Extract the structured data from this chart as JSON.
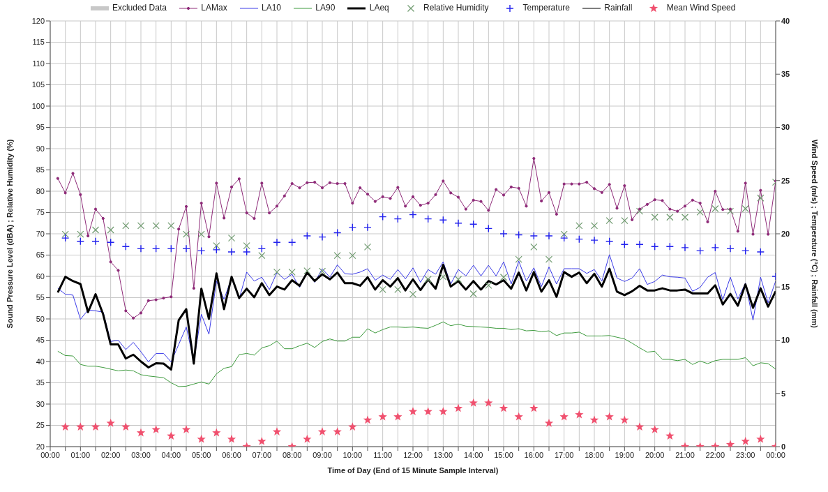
{
  "chart_data": {
    "type": "line",
    "xlabel": "Time of Day (End of 15 Minute Sample Interval)",
    "ylabel": "Sound Pressure Level (dBA) ; Relative Humidity (%)",
    "y2label": "Wind Speed (m/s) ; Temperature (°C) ; Rainfall (mm)",
    "x": [
      0.25,
      0.5,
      0.75,
      1,
      1.25,
      1.5,
      1.75,
      2,
      2.25,
      2.5,
      2.75,
      3,
      3.25,
      3.5,
      3.75,
      4,
      4.25,
      4.5,
      4.75,
      5,
      5.25,
      5.5,
      5.75,
      6,
      6.25,
      6.5,
      6.75,
      7,
      7.25,
      7.5,
      7.75,
      8,
      8.25,
      8.5,
      8.75,
      9,
      9.25,
      9.5,
      9.75,
      10,
      10.25,
      10.5,
      10.75,
      11,
      11.25,
      11.5,
      11.75,
      12,
      12.25,
      12.5,
      12.75,
      13,
      13.25,
      13.5,
      13.75,
      14,
      14.25,
      14.5,
      14.75,
      15,
      15.25,
      15.5,
      15.75,
      16,
      16.25,
      16.5,
      16.75,
      17,
      17.25,
      17.5,
      17.75,
      18,
      18.25,
      18.5,
      18.75,
      19,
      19.25,
      19.5,
      19.75,
      20,
      20.25,
      20.5,
      20.75,
      21,
      21.25,
      21.5,
      21.75,
      22,
      22.25,
      22.5,
      22.75,
      23,
      23.25,
      23.5,
      23.75,
      24
    ],
    "series": [
      {
        "name": "Excluded Data",
        "type": "area",
        "color": "#c8c8c8",
        "values": [
          null,
          null,
          null,
          null,
          null,
          null,
          null,
          null,
          null,
          null,
          null,
          null,
          null,
          null,
          null,
          null,
          null,
          null,
          null,
          null,
          null,
          null,
          null,
          null,
          null,
          null,
          null,
          null,
          null,
          null,
          null,
          null,
          null,
          null,
          null,
          null,
          null,
          null,
          null,
          null,
          null,
          null,
          null,
          null,
          null,
          null,
          null,
          null,
          null,
          null,
          null,
          null,
          null,
          null,
          null,
          null,
          null,
          null,
          null,
          null,
          null,
          null,
          null,
          null,
          null,
          null,
          null,
          null,
          null,
          null,
          null,
          null,
          null,
          null,
          null,
          null,
          null,
          null,
          null,
          null,
          null,
          null,
          null,
          null,
          null,
          null,
          null,
          null,
          null,
          null,
          null,
          null,
          null,
          null,
          null,
          null
        ]
      },
      {
        "name": "LAMax",
        "color": "#8e2a78",
        "marker": "circle",
        "values": [
          83.0,
          79.6,
          84.2,
          79.2,
          69.5,
          75.8,
          73.6,
          63.4,
          61.4,
          51.9,
          50.2,
          51.4,
          54.3,
          54.5,
          54.9,
          55.2,
          71.1,
          76.4,
          57.2,
          77.2,
          69.3,
          81.9,
          73.7,
          81.0,
          82.9,
          74.9,
          73.6,
          81.9,
          74.9,
          76.5,
          78.9,
          81.8,
          80.8,
          82.0,
          82.1,
          80.8,
          82.0,
          81.8,
          81.8,
          77.2,
          80.8,
          79.3,
          77.6,
          78.7,
          78.3,
          80.9,
          76.5,
          78.7,
          76.7,
          77.2,
          79.2,
          82.4,
          79.6,
          78.6,
          75.8,
          77.9,
          77.6,
          75.5,
          80.4,
          79.1,
          81.0,
          80.7,
          76.5,
          87.7,
          77.7,
          79.7,
          74.6,
          81.7,
          81.7,
          81.7,
          82.1,
          80.6,
          79.7,
          81.6,
          76.0,
          81.3,
          73.3,
          75.8,
          76.9,
          78.0,
          77.8,
          75.8,
          75.3,
          76.5,
          77.9,
          77.2,
          72.8,
          80.0,
          75.7,
          75.8,
          70.6,
          81.9,
          69.9,
          80.2,
          69.9,
          82.4
        ]
      },
      {
        "name": "LA10",
        "color": "#3a3ae8",
        "values": [
          57.2,
          55.8,
          55.6,
          49.9,
          52.1,
          51.9,
          51.6,
          44.7,
          45.0,
          42.8,
          44.5,
          42.3,
          39.9,
          41.9,
          41.9,
          39.9,
          44.0,
          48.1,
          40.1,
          51.1,
          46.4,
          58.9,
          54.6,
          59.6,
          54.7,
          61.0,
          58.9,
          59.8,
          56.9,
          60.9,
          59.3,
          60.5,
          57.4,
          61.0,
          58.6,
          61.8,
          59.8,
          62.7,
          60.6,
          60.5,
          61.0,
          61.8,
          59.1,
          60.3,
          59.3,
          61.6,
          59.4,
          62.0,
          58.6,
          61.6,
          60.5,
          63.4,
          58.2,
          61.6,
          60.1,
          62.6,
          60.1,
          62.6,
          60.1,
          63.4,
          58.2,
          63.6,
          58.9,
          62.0,
          57.6,
          62.2,
          58.2,
          61.8,
          61.8,
          61.8,
          60.7,
          61.6,
          58.9,
          65.1,
          59.6,
          58.8,
          59.6,
          61.8,
          58.1,
          58.8,
          60.3,
          59.9,
          59.8,
          59.6,
          56.5,
          57.4,
          59.8,
          60.9,
          54.5,
          59.8,
          54.7,
          58.4,
          49.7,
          59.8,
          53.8,
          58.9
        ]
      },
      {
        "name": "LA90",
        "color": "#3c9a3c",
        "values": [
          42.4,
          41.4,
          41.3,
          39.3,
          38.9,
          38.9,
          38.6,
          38.2,
          37.8,
          38.0,
          37.8,
          36.9,
          36.6,
          36.4,
          36.2,
          35.0,
          34.1,
          34.2,
          34.7,
          35.2,
          34.7,
          37.1,
          38.4,
          38.8,
          41.6,
          41.9,
          41.5,
          43.2,
          43.7,
          44.8,
          43.0,
          43.0,
          43.7,
          44.3,
          43.3,
          44.7,
          45.3,
          44.8,
          44.8,
          45.7,
          45.7,
          47.7,
          46.7,
          47.5,
          48.1,
          48.1,
          48.0,
          48.1,
          47.9,
          47.8,
          48.5,
          49.3,
          48.4,
          48.8,
          48.3,
          48.2,
          48.1,
          48.0,
          47.8,
          47.8,
          47.5,
          47.7,
          47.2,
          47.3,
          47.0,
          47.2,
          46.1,
          46.7,
          46.7,
          46.9,
          46.0,
          46.0,
          46.0,
          46.1,
          45.7,
          45.3,
          44.3,
          43.2,
          42.2,
          42.4,
          40.5,
          40.5,
          40.2,
          40.5,
          39.3,
          40.1,
          39.5,
          40.2,
          40.5,
          40.5,
          40.5,
          40.9,
          39.0,
          39.7,
          39.5,
          38.2
        ]
      },
      {
        "name": "LAeq",
        "color": "#000000",
        "values": [
          56.2,
          59.9,
          58.9,
          58.2,
          51.6,
          55.8,
          51.1,
          44.0,
          44.0,
          40.7,
          41.6,
          40.0,
          38.6,
          39.6,
          39.5,
          38.1,
          49.7,
          52.3,
          39.5,
          57.1,
          50.0,
          60.7,
          52.3,
          59.9,
          54.9,
          57.1,
          55.1,
          58.4,
          55.6,
          57.6,
          56.9,
          59.1,
          57.8,
          60.9,
          58.9,
          60.5,
          59.3,
          60.9,
          58.4,
          58.4,
          57.8,
          59.8,
          56.9,
          59.1,
          57.6,
          59.6,
          56.7,
          59.3,
          56.8,
          59.3,
          57.1,
          62.7,
          57.6,
          58.9,
          56.9,
          58.9,
          56.9,
          58.9,
          58.1,
          59.1,
          57.1,
          60.9,
          56.7,
          61.0,
          56.4,
          59.1,
          55.2,
          61.0,
          59.9,
          60.9,
          58.4,
          60.6,
          57.6,
          61.8,
          56.4,
          55.6,
          56.5,
          57.8,
          56.7,
          56.7,
          57.2,
          56.7,
          56.7,
          56.9,
          56.0,
          56.0,
          56.0,
          57.9,
          53.4,
          55.9,
          53.1,
          58.1,
          52.6,
          57.2,
          52.9,
          56.5
        ]
      },
      {
        "name": "Relative Humidity",
        "type": "scatter",
        "color": "#6f9a6f",
        "marker": "cross",
        "x": [
          0.5,
          1,
          1.5,
          2,
          2.5,
          3,
          3.5,
          4,
          4.5,
          5,
          5.5,
          6,
          6.5,
          7,
          7.5,
          8,
          8.5,
          9,
          9.5,
          10,
          10.5,
          11,
          11.5,
          12,
          12.5,
          13,
          13.5,
          14,
          14.5,
          15,
          15.5,
          16,
          16.5,
          17,
          17.5,
          18,
          18.5,
          19,
          19.5,
          20,
          20.5,
          21,
          21.5,
          22,
          22.5,
          23,
          23.5,
          24
        ],
        "values": [
          69.9,
          69.9,
          70.9,
          70.9,
          71.9,
          71.9,
          71.9,
          71.9,
          69.9,
          69.9,
          67.2,
          69.0,
          67.2,
          64.9,
          61.0,
          61.0,
          61.3,
          61.2,
          64.9,
          64.9,
          66.9,
          56.9,
          56.9,
          55.8,
          59.3,
          59.9,
          59.3,
          55.9,
          57.9,
          59.8,
          64.0,
          66.9,
          64.0,
          69.9,
          71.9,
          71.9,
          73.1,
          73.1,
          75.3,
          73.9,
          73.9,
          73.9,
          75.1,
          75.9,
          75.3,
          75.9,
          78.4,
          82.1
        ]
      },
      {
        "name": "Temperature",
        "type": "scatter",
        "color": "#2222ee",
        "marker": "plus",
        "axis": "y2",
        "x": [
          0.5,
          1,
          1.5,
          2,
          2.5,
          3,
          3.5,
          4,
          4.5,
          5,
          5.5,
          6,
          6.5,
          7,
          7.5,
          8,
          8.5,
          9,
          9.5,
          10,
          10.5,
          11,
          11.5,
          12,
          12.5,
          13,
          13.5,
          14,
          14.5,
          15,
          15.5,
          16,
          16.5,
          17,
          17.5,
          18,
          18.5,
          19,
          19.5,
          20,
          20.5,
          21,
          21.5,
          22,
          22.5,
          23,
          23.5,
          24
        ],
        "values": [
          19.6,
          19.3,
          19.3,
          19.2,
          18.8,
          18.6,
          18.6,
          18.6,
          18.6,
          18.4,
          18.5,
          18.3,
          18.3,
          18.6,
          19.2,
          19.2,
          19.8,
          19.7,
          20.1,
          20.6,
          20.6,
          21.6,
          21.4,
          21.8,
          21.4,
          21.3,
          21.0,
          20.9,
          20.5,
          20.0,
          19.9,
          19.8,
          19.8,
          19.6,
          19.5,
          19.4,
          19.3,
          19.0,
          19.0,
          18.8,
          18.8,
          18.7,
          18.4,
          18.7,
          18.6,
          18.4,
          18.3,
          16.0
        ]
      },
      {
        "name": "Rainfall",
        "color": "#000000",
        "axis": "y2",
        "values": [
          null,
          null,
          null,
          null,
          null,
          null,
          null,
          null,
          null,
          null,
          null,
          null,
          null,
          null,
          null,
          null,
          null,
          null,
          null,
          null,
          null,
          null,
          null,
          null,
          null,
          null,
          null,
          null,
          null,
          null,
          null,
          null,
          null,
          null,
          null,
          null,
          null,
          null,
          null,
          null,
          null,
          null,
          null,
          null,
          null,
          null,
          null,
          null,
          null,
          null,
          null,
          null,
          null,
          null,
          null,
          null,
          null,
          null,
          null,
          null,
          null,
          null,
          null,
          null,
          null,
          null,
          null,
          null,
          null,
          null,
          null,
          null,
          null,
          null,
          null,
          null,
          null,
          null,
          null,
          null,
          null,
          null,
          null,
          null,
          null,
          null,
          null,
          null,
          null,
          null,
          null,
          null,
          null,
          null,
          null,
          null
        ]
      },
      {
        "name": "Mean Wind Speed",
        "type": "scatter",
        "color": "#f0506e",
        "marker": "star",
        "axis": "y2",
        "x": [
          0.5,
          1,
          1.5,
          2,
          2.5,
          3,
          3.5,
          4,
          4.5,
          5,
          5.5,
          6,
          6.5,
          7,
          7.5,
          8,
          8.5,
          9,
          9.5,
          10,
          10.5,
          11,
          11.5,
          12,
          12.5,
          13,
          13.5,
          14,
          14.5,
          15,
          15.5,
          16,
          16.5,
          17,
          17.5,
          18,
          18.5,
          19,
          19.5,
          20,
          20.5,
          21,
          21.5,
          22,
          22.5,
          23,
          23.5,
          24
        ],
        "values": [
          1.85,
          1.85,
          1.85,
          2.2,
          1.85,
          1.3,
          1.6,
          1.0,
          1.6,
          0.7,
          1.3,
          0.7,
          0,
          0.5,
          1.4,
          0,
          0.7,
          1.4,
          1.4,
          1.85,
          2.5,
          2.8,
          2.8,
          3.3,
          3.3,
          3.3,
          3.6,
          4.1,
          4.1,
          3.6,
          2.8,
          3.6,
          2.2,
          2.8,
          3.0,
          2.5,
          2.8,
          2.5,
          1.85,
          1.6,
          1.0,
          0,
          0,
          0,
          0.2,
          0.5,
          0.7,
          0
        ]
      }
    ],
    "xlim": [
      0,
      24
    ],
    "xticks": [
      {
        "value": 0,
        "label": "00:00"
      },
      {
        "value": 0.5,
        "label": null
      },
      {
        "value": 1,
        "label": "01:00"
      },
      {
        "value": 1.5,
        "label": null
      },
      {
        "value": 2,
        "label": "02:00"
      },
      {
        "value": 2.5,
        "label": null
      },
      {
        "value": 3,
        "label": "03:00"
      },
      {
        "value": 3.5,
        "label": null
      },
      {
        "value": 4,
        "label": "04:00"
      },
      {
        "value": 4.5,
        "label": null
      },
      {
        "value": 5,
        "label": "05:00"
      },
      {
        "value": 5.5,
        "label": null
      },
      {
        "value": 6,
        "label": "06:00"
      },
      {
        "value": 6.5,
        "label": null
      },
      {
        "value": 7,
        "label": "07:00"
      },
      {
        "value": 7.5,
        "label": null
      },
      {
        "value": 8,
        "label": "08:00"
      },
      {
        "value": 8.5,
        "label": null
      },
      {
        "value": 9,
        "label": "09:00"
      },
      {
        "value": 9.5,
        "label": null
      },
      {
        "value": 10,
        "label": "10:00"
      },
      {
        "value": 10.5,
        "label": null
      },
      {
        "value": 11,
        "label": "11:00"
      },
      {
        "value": 11.5,
        "label": null
      },
      {
        "value": 12,
        "label": "12:00"
      },
      {
        "value": 12.5,
        "label": null
      },
      {
        "value": 13,
        "label": "13:00"
      },
      {
        "value": 13.5,
        "label": null
      },
      {
        "value": 14,
        "label": "14:00"
      },
      {
        "value": 14.5,
        "label": null
      },
      {
        "value": 15,
        "label": "15:00"
      },
      {
        "value": 15.5,
        "label": null
      },
      {
        "value": 16,
        "label": "16:00"
      },
      {
        "value": 16.5,
        "label": null
      },
      {
        "value": 17,
        "label": "17:00"
      },
      {
        "value": 17.5,
        "label": null
      },
      {
        "value": 18,
        "label": "18:00"
      },
      {
        "value": 18.5,
        "label": null
      },
      {
        "value": 19,
        "label": "19:00"
      },
      {
        "value": 19.5,
        "label": null
      },
      {
        "value": 20,
        "label": "20:00"
      },
      {
        "value": 20.5,
        "label": null
      },
      {
        "value": 21,
        "label": "21:00"
      },
      {
        "value": 21.5,
        "label": null
      },
      {
        "value": 22,
        "label": "22:00"
      },
      {
        "value": 22.5,
        "label": null
      },
      {
        "value": 23,
        "label": "23:00"
      },
      {
        "value": 23.5,
        "label": null
      },
      {
        "value": 24,
        "label": "00:00"
      }
    ],
    "ylim": [
      20,
      120
    ],
    "yticks": [
      20,
      25,
      30,
      35,
      40,
      45,
      50,
      55,
      60,
      65,
      70,
      75,
      80,
      85,
      90,
      95,
      100,
      105,
      110,
      115,
      120
    ],
    "y2lim": [
      0,
      40
    ],
    "y2ticks": [
      0,
      5,
      10,
      15,
      20,
      25,
      30,
      35,
      40
    ],
    "grid": true,
    "legend": "top"
  }
}
